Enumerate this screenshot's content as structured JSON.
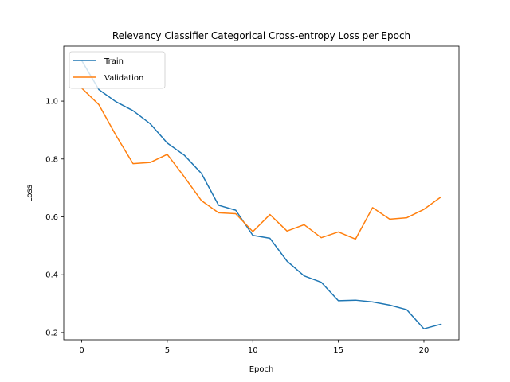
{
  "chart_data": {
    "type": "line",
    "title": "Relevancy Classifier Categorical Cross-entropy Loss per Epoch",
    "xlabel": "Epoch",
    "ylabel": "Loss",
    "xlim": [
      -1.05,
      22.05
    ],
    "ylim": [
      0.175,
      1.19
    ],
    "xticks": [
      0,
      5,
      10,
      15,
      20
    ],
    "yticks": [
      0.2,
      0.4,
      0.6,
      0.8,
      1.0
    ],
    "ytick_labels": [
      "0.2",
      "0.4",
      "0.6",
      "0.8",
      "1.0"
    ],
    "legend_position": "top-left",
    "grid": false,
    "x": [
      0,
      1,
      2,
      3,
      4,
      5,
      6,
      7,
      8,
      9,
      10,
      11,
      12,
      13,
      14,
      15,
      16,
      17,
      18,
      19,
      20,
      21
    ],
    "series": [
      {
        "name": "Train",
        "color": "#1f77b4",
        "values": [
          1.14,
          1.04,
          0.998,
          0.967,
          0.922,
          0.855,
          0.813,
          0.75,
          0.64,
          0.623,
          0.536,
          0.526,
          0.447,
          0.396,
          0.374,
          0.31,
          0.312,
          0.306,
          0.295,
          0.279,
          0.213,
          0.229
        ]
      },
      {
        "name": "Validation",
        "color": "#ff7f0e",
        "values": [
          1.045,
          0.988,
          0.882,
          0.784,
          0.788,
          0.816,
          0.738,
          0.656,
          0.614,
          0.611,
          0.549,
          0.608,
          0.551,
          0.573,
          0.528,
          0.548,
          0.523,
          0.632,
          0.592,
          0.597,
          0.626,
          0.669
        ]
      }
    ]
  }
}
